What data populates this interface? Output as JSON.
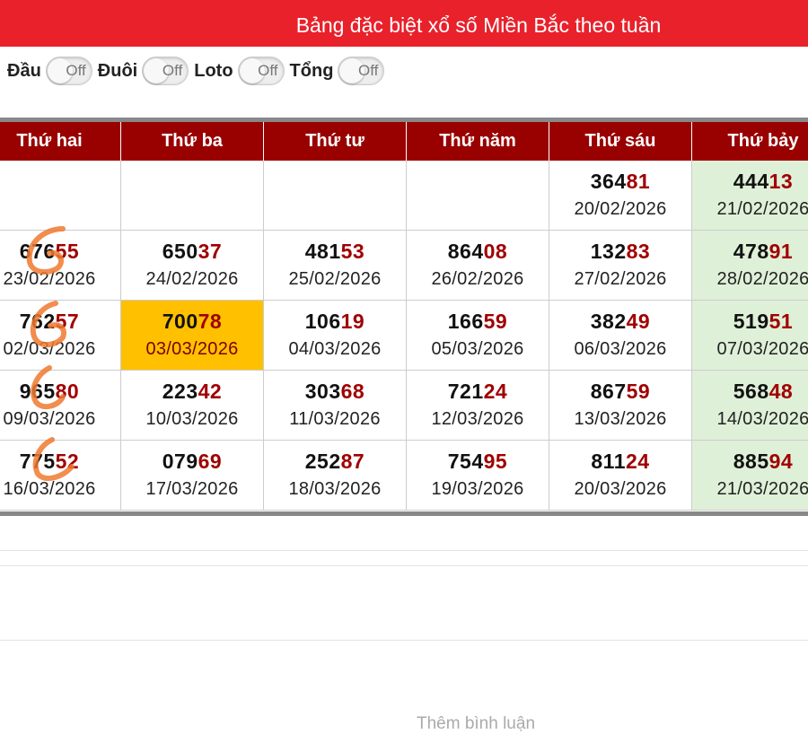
{
  "header": {
    "title": "Bảng đặc biệt xổ số Miền Bắc theo tuần"
  },
  "toggles": [
    {
      "label": "Đầu",
      "state": "Off"
    },
    {
      "label": "Đuôi",
      "state": "Off"
    },
    {
      "label": "Loto",
      "state": "Off"
    },
    {
      "label": "Tổng",
      "state": "Off"
    }
  ],
  "table": {
    "columns": [
      "Thứ hai",
      "Thứ ba",
      "Thứ tư",
      "Thứ năm",
      "Thứ sáu",
      "Thứ bảy"
    ],
    "rows": [
      [
        null,
        null,
        null,
        null,
        {
          "head": "364",
          "tail": "81",
          "date": "20/02/2026"
        },
        {
          "head": "444",
          "tail": "13",
          "date": "21/02/2026"
        }
      ],
      [
        {
          "head": "676",
          "tail": "55",
          "date": "23/02/2026"
        },
        {
          "head": "650",
          "tail": "37",
          "date": "24/02/2026"
        },
        {
          "head": "481",
          "tail": "53",
          "date": "25/02/2026"
        },
        {
          "head": "864",
          "tail": "08",
          "date": "26/02/2026"
        },
        {
          "head": "132",
          "tail": "83",
          "date": "27/02/2026"
        },
        {
          "head": "478",
          "tail": "91",
          "date": "28/02/2026"
        }
      ],
      [
        {
          "head": "762",
          "tail": "57",
          "date": "02/03/2026"
        },
        {
          "head": "700",
          "tail": "78",
          "date": "03/03/2026"
        },
        {
          "head": "106",
          "tail": "19",
          "date": "04/03/2026"
        },
        {
          "head": "166",
          "tail": "59",
          "date": "05/03/2026"
        },
        {
          "head": "382",
          "tail": "49",
          "date": "06/03/2026"
        },
        {
          "head": "519",
          "tail": "51",
          "date": "07/03/2026"
        }
      ],
      [
        {
          "head": "965",
          "tail": "80",
          "date": "09/03/2026"
        },
        {
          "head": "223",
          "tail": "42",
          "date": "10/03/2026"
        },
        {
          "head": "303",
          "tail": "68",
          "date": "11/03/2026"
        },
        {
          "head": "721",
          "tail": "24",
          "date": "12/03/2026"
        },
        {
          "head": "867",
          "tail": "59",
          "date": "13/03/2026"
        },
        {
          "head": "568",
          "tail": "48",
          "date": "14/03/2026"
        }
      ],
      [
        {
          "head": "775",
          "tail": "52",
          "date": "16/03/2026"
        },
        {
          "head": "079",
          "tail": "69",
          "date": "17/03/2026"
        },
        {
          "head": "252",
          "tail": "87",
          "date": "18/03/2026"
        },
        {
          "head": "754",
          "tail": "95",
          "date": "19/03/2026"
        },
        {
          "head": "811",
          "tail": "24",
          "date": "20/03/2026"
        },
        {
          "head": "885",
          "tail": "94",
          "date": "21/03/2026"
        }
      ]
    ],
    "highlight": "03/03/2026"
  },
  "footer": {
    "link": "Thêm bình luận"
  }
}
